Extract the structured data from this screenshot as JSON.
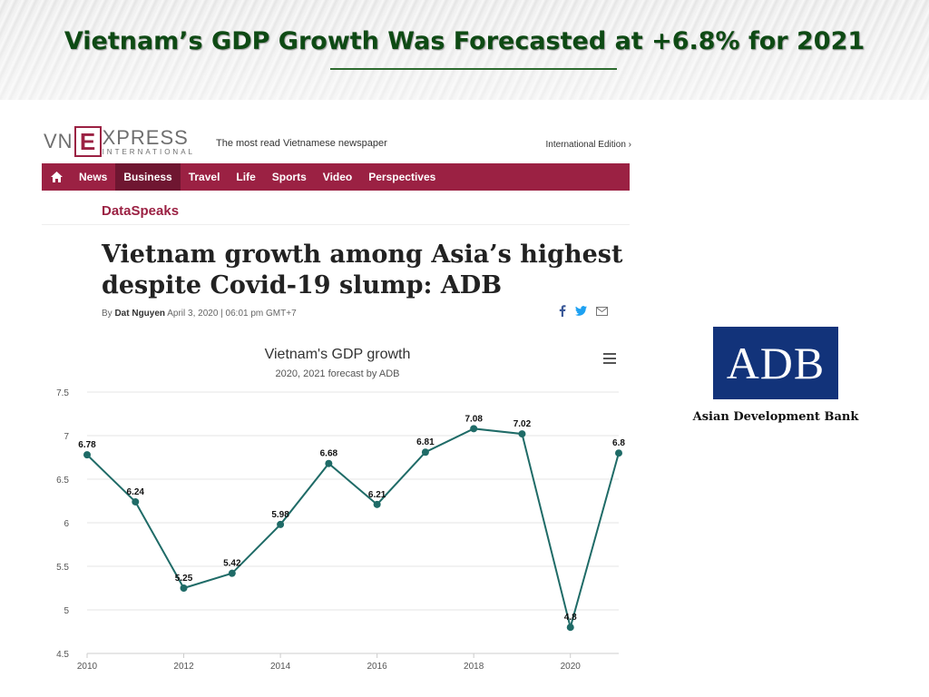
{
  "slide": {
    "title": "Vietnam’s GDP Growth Was Forecasted at +6.8% for 2021"
  },
  "newspaper": {
    "logo_vn": "VN",
    "logo_e": "E",
    "logo_xpress": "XPRESS",
    "logo_intl": "INTERNATIONAL",
    "tagline": "The most read Vietnamese newspaper",
    "edition": "International Edition ›",
    "nav": {
      "home_icon": "home-icon",
      "items": [
        "News",
        "Business",
        "Travel",
        "Life",
        "Sports",
        "Video",
        "Perspectives"
      ],
      "active": "Business"
    },
    "brand_color": "#9b2143",
    "section": "DataSpeaks",
    "headline": "Vietnam growth among Asia’s highest despite Covid-19 slump: ADB",
    "byline": {
      "prefix": "By",
      "author": "Dat Nguyen",
      "date": "April 3, 2020 | 06:01 pm GMT+7"
    },
    "share_icons": [
      "facebook-icon",
      "twitter-icon",
      "mail-icon"
    ]
  },
  "adb": {
    "logo_text": "ADB",
    "name": "Asian Development Bank",
    "color": "#12337a"
  },
  "chart_data": {
    "type": "line",
    "title": "Vietnam's GDP growth",
    "subtitle": "2020, 2021 forecast by ADB",
    "xlabel": "",
    "ylabel": "",
    "x": [
      2010,
      2011,
      2012,
      2013,
      2014,
      2015,
      2016,
      2017,
      2018,
      2019,
      2020,
      2021
    ],
    "series": [
      {
        "values": [
          6.78,
          6.24,
          5.25,
          5.42,
          5.98,
          6.68,
          6.21,
          6.81,
          7.08,
          7.02,
          4.8,
          6.8
        ],
        "color": "#1f6b67"
      }
    ],
    "data_labels": [
      "6.78",
      "6.24",
      "5.25",
      "5.42",
      "5.98",
      "6.68",
      "6.21",
      "6.81",
      "7.08",
      "7.02",
      "4.8",
      "6.8"
    ],
    "xlim": [
      2010,
      2021
    ],
    "ylim": [
      4.5,
      7.5
    ],
    "x_ticks": [
      2010,
      2012,
      2014,
      2016,
      2018,
      2020
    ],
    "y_ticks": [
      "4.5",
      "5",
      "5.5",
      "6",
      "6.5",
      "7",
      "7.5"
    ],
    "grid": true,
    "legend": "none"
  }
}
